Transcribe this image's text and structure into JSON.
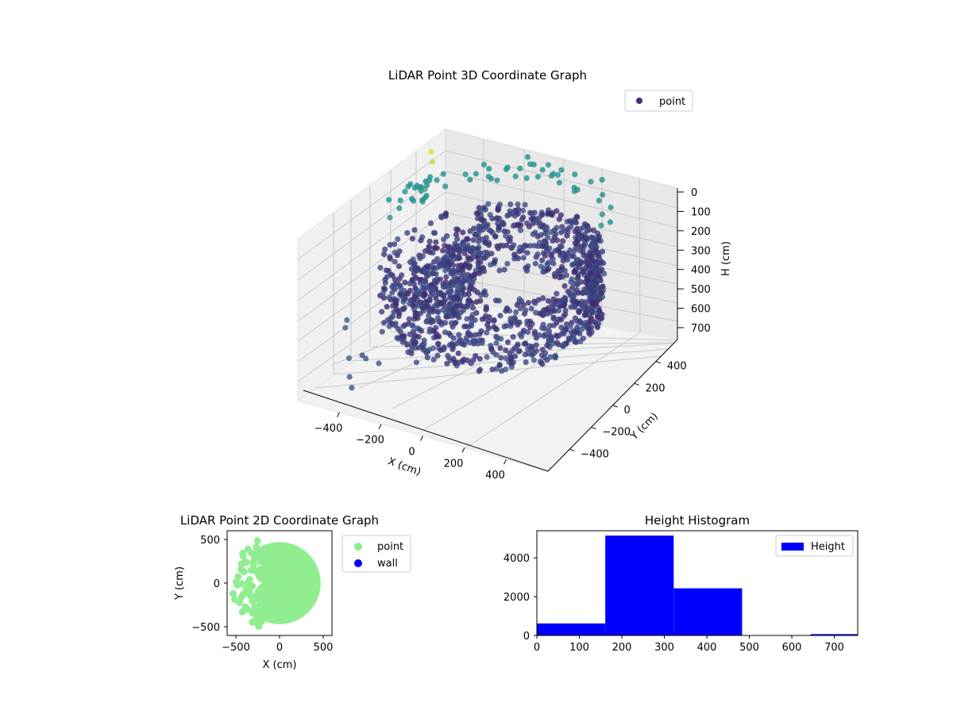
{
  "chart_data": [
    {
      "type": "scatter",
      "projection": "3d",
      "title": "LiDAR Point 3D Coordinate Graph",
      "xlabel": "X (cm)",
      "ylabel": "Y (cm)",
      "zlabel": "H (cm)",
      "xlim": [
        -600,
        600
      ],
      "ylim": [
        -600,
        600
      ],
      "zlim": [
        0,
        750
      ],
      "z_inverted": true,
      "xticks": [
        -400,
        -200,
        0,
        200,
        400
      ],
      "yticks": [
        -400,
        -200,
        0,
        200,
        400
      ],
      "zticks": [
        0,
        100,
        200,
        300,
        400,
        500,
        600,
        700
      ],
      "legend": {
        "label": "point",
        "placement": "top-right"
      },
      "colormap": "viridis",
      "description_of_points": "LiDAR returns forming a ring of radius about 480 cm at heights roughly 150-500 cm, with a cavity opening toward -X, plus sparse outliers near heights 0-100 cm",
      "grid": true
    },
    {
      "type": "scatter",
      "title": "LiDAR Point 2D Coordinate Graph",
      "xlabel": "X (cm)",
      "ylabel": "Y (cm)",
      "xlim": [
        -600,
        600
      ],
      "ylim": [
        -600,
        600
      ],
      "xticks": [
        -500,
        0,
        500
      ],
      "yticks": [
        -500,
        0,
        500
      ],
      "series": [
        {
          "name": "point",
          "color": "#90ee90"
        },
        {
          "name": "wall",
          "color": "#0000ff"
        }
      ],
      "legend_placement": "outside-right"
    },
    {
      "type": "bar",
      "title": "Height Histogram",
      "xlabel": "",
      "ylabel": "",
      "xlim": [
        0,
        755
      ],
      "ylim": [
        0,
        5400
      ],
      "xticks": [
        0,
        100,
        200,
        300,
        400,
        500,
        600,
        700
      ],
      "yticks": [
        0,
        2000,
        4000
      ],
      "bins": [
        {
          "start": 0,
          "end": 161,
          "value": 620
        },
        {
          "start": 161,
          "end": 322,
          "value": 5150
        },
        {
          "start": 322,
          "end": 483,
          "value": 2430
        },
        {
          "start": 483,
          "end": 644,
          "value": 15
        },
        {
          "start": 644,
          "end": 805,
          "value": 70
        }
      ],
      "series": [
        {
          "name": "Height",
          "color": "#0000ff"
        }
      ],
      "legend_placement": "top-right"
    }
  ]
}
